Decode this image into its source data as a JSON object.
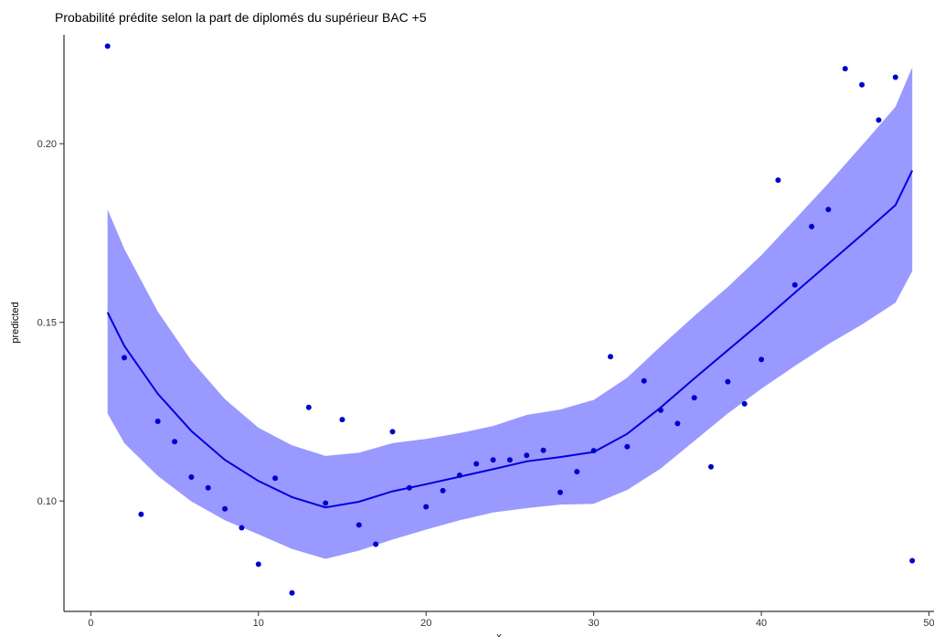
{
  "chart_data": {
    "type": "scatter",
    "title": "Probabilité prédite selon la part de diplomés du supérieur BAC +5",
    "xlabel": "x",
    "ylabel": "predicted",
    "xlim": [
      -1.6,
      50.3
    ],
    "ylim": [
      0.0691,
      0.2305
    ],
    "xticks": [
      0,
      10,
      20,
      30,
      40,
      50
    ],
    "yticks": [
      0.1,
      0.15,
      0.2
    ],
    "ytick_labels": [
      "0.10",
      "0.15",
      "0.20"
    ],
    "grid": false,
    "colors": {
      "points": "#0000cc",
      "smooth_line": "#0000dd",
      "ribbon": "#9999ff"
    },
    "points": [
      {
        "x": 1,
        "y": 0.2273
      },
      {
        "x": 2,
        "y": 0.1401
      },
      {
        "x": 3,
        "y": 0.0963
      },
      {
        "x": 4,
        "y": 0.1223
      },
      {
        "x": 5,
        "y": 0.1166
      },
      {
        "x": 6,
        "y": 0.1067
      },
      {
        "x": 7,
        "y": 0.1037
      },
      {
        "x": 8,
        "y": 0.0978
      },
      {
        "x": 9,
        "y": 0.0925
      },
      {
        "x": 10,
        "y": 0.0823
      },
      {
        "x": 11,
        "y": 0.1064
      },
      {
        "x": 12,
        "y": 0.0743
      },
      {
        "x": 13,
        "y": 0.1262
      },
      {
        "x": 14,
        "y": 0.0994
      },
      {
        "x": 15,
        "y": 0.1228
      },
      {
        "x": 16,
        "y": 0.0933
      },
      {
        "x": 17,
        "y": 0.0879
      },
      {
        "x": 18,
        "y": 0.1194
      },
      {
        "x": 19,
        "y": 0.1037
      },
      {
        "x": 20,
        "y": 0.0984
      },
      {
        "x": 21,
        "y": 0.1029
      },
      {
        "x": 22,
        "y": 0.1072
      },
      {
        "x": 23,
        "y": 0.1104
      },
      {
        "x": 24,
        "y": 0.1115
      },
      {
        "x": 25,
        "y": 0.1115
      },
      {
        "x": 26,
        "y": 0.1128
      },
      {
        "x": 27,
        "y": 0.1142
      },
      {
        "x": 28,
        "y": 0.1024
      },
      {
        "x": 29,
        "y": 0.1082
      },
      {
        "x": 30,
        "y": 0.1141
      },
      {
        "x": 31,
        "y": 0.1404
      },
      {
        "x": 32,
        "y": 0.1152
      },
      {
        "x": 33,
        "y": 0.1336
      },
      {
        "x": 34,
        "y": 0.1254
      },
      {
        "x": 35,
        "y": 0.1217
      },
      {
        "x": 36,
        "y": 0.1289
      },
      {
        "x": 37,
        "y": 0.1096
      },
      {
        "x": 38,
        "y": 0.1334
      },
      {
        "x": 39,
        "y": 0.1272
      },
      {
        "x": 40,
        "y": 0.1396
      },
      {
        "x": 41,
        "y": 0.1898
      },
      {
        "x": 42,
        "y": 0.1605
      },
      {
        "x": 43,
        "y": 0.1768
      },
      {
        "x": 44,
        "y": 0.1816
      },
      {
        "x": 45,
        "y": 0.221
      },
      {
        "x": 46,
        "y": 0.2165
      },
      {
        "x": 47,
        "y": 0.2066
      },
      {
        "x": 48,
        "y": 0.2186
      },
      {
        "x": 49,
        "y": 0.0833
      }
    ],
    "smooth": {
      "x": [
        1,
        2,
        4,
        6,
        8,
        10,
        12,
        14,
        16,
        18,
        20,
        22,
        24,
        26,
        28,
        30,
        32,
        34,
        36,
        38,
        40,
        42,
        44,
        46,
        48,
        49
      ],
      "y": [
        0.1528,
        0.1434,
        0.13,
        0.1196,
        0.1115,
        0.1056,
        0.1011,
        0.0982,
        0.0998,
        0.1027,
        0.1047,
        0.1068,
        0.1089,
        0.1111,
        0.1123,
        0.1137,
        0.1188,
        0.1262,
        0.1343,
        0.1422,
        0.1501,
        0.1583,
        0.1664,
        0.1745,
        0.1828,
        0.1925
      ],
      "upper": [
        0.1816,
        0.1706,
        0.153,
        0.1393,
        0.1285,
        0.1205,
        0.1156,
        0.1126,
        0.1135,
        0.1162,
        0.1174,
        0.119,
        0.121,
        0.1241,
        0.1256,
        0.1283,
        0.1345,
        0.1433,
        0.1518,
        0.1599,
        0.1688,
        0.1788,
        0.1889,
        0.1995,
        0.2103,
        0.2214
      ],
      "lower": [
        0.1245,
        0.1162,
        0.107,
        0.0999,
        0.0946,
        0.0907,
        0.0866,
        0.0838,
        0.0861,
        0.0892,
        0.092,
        0.0946,
        0.0968,
        0.098,
        0.099,
        0.0992,
        0.1031,
        0.1091,
        0.1168,
        0.1245,
        0.1314,
        0.1378,
        0.1439,
        0.1494,
        0.1555,
        0.1643
      ]
    }
  }
}
